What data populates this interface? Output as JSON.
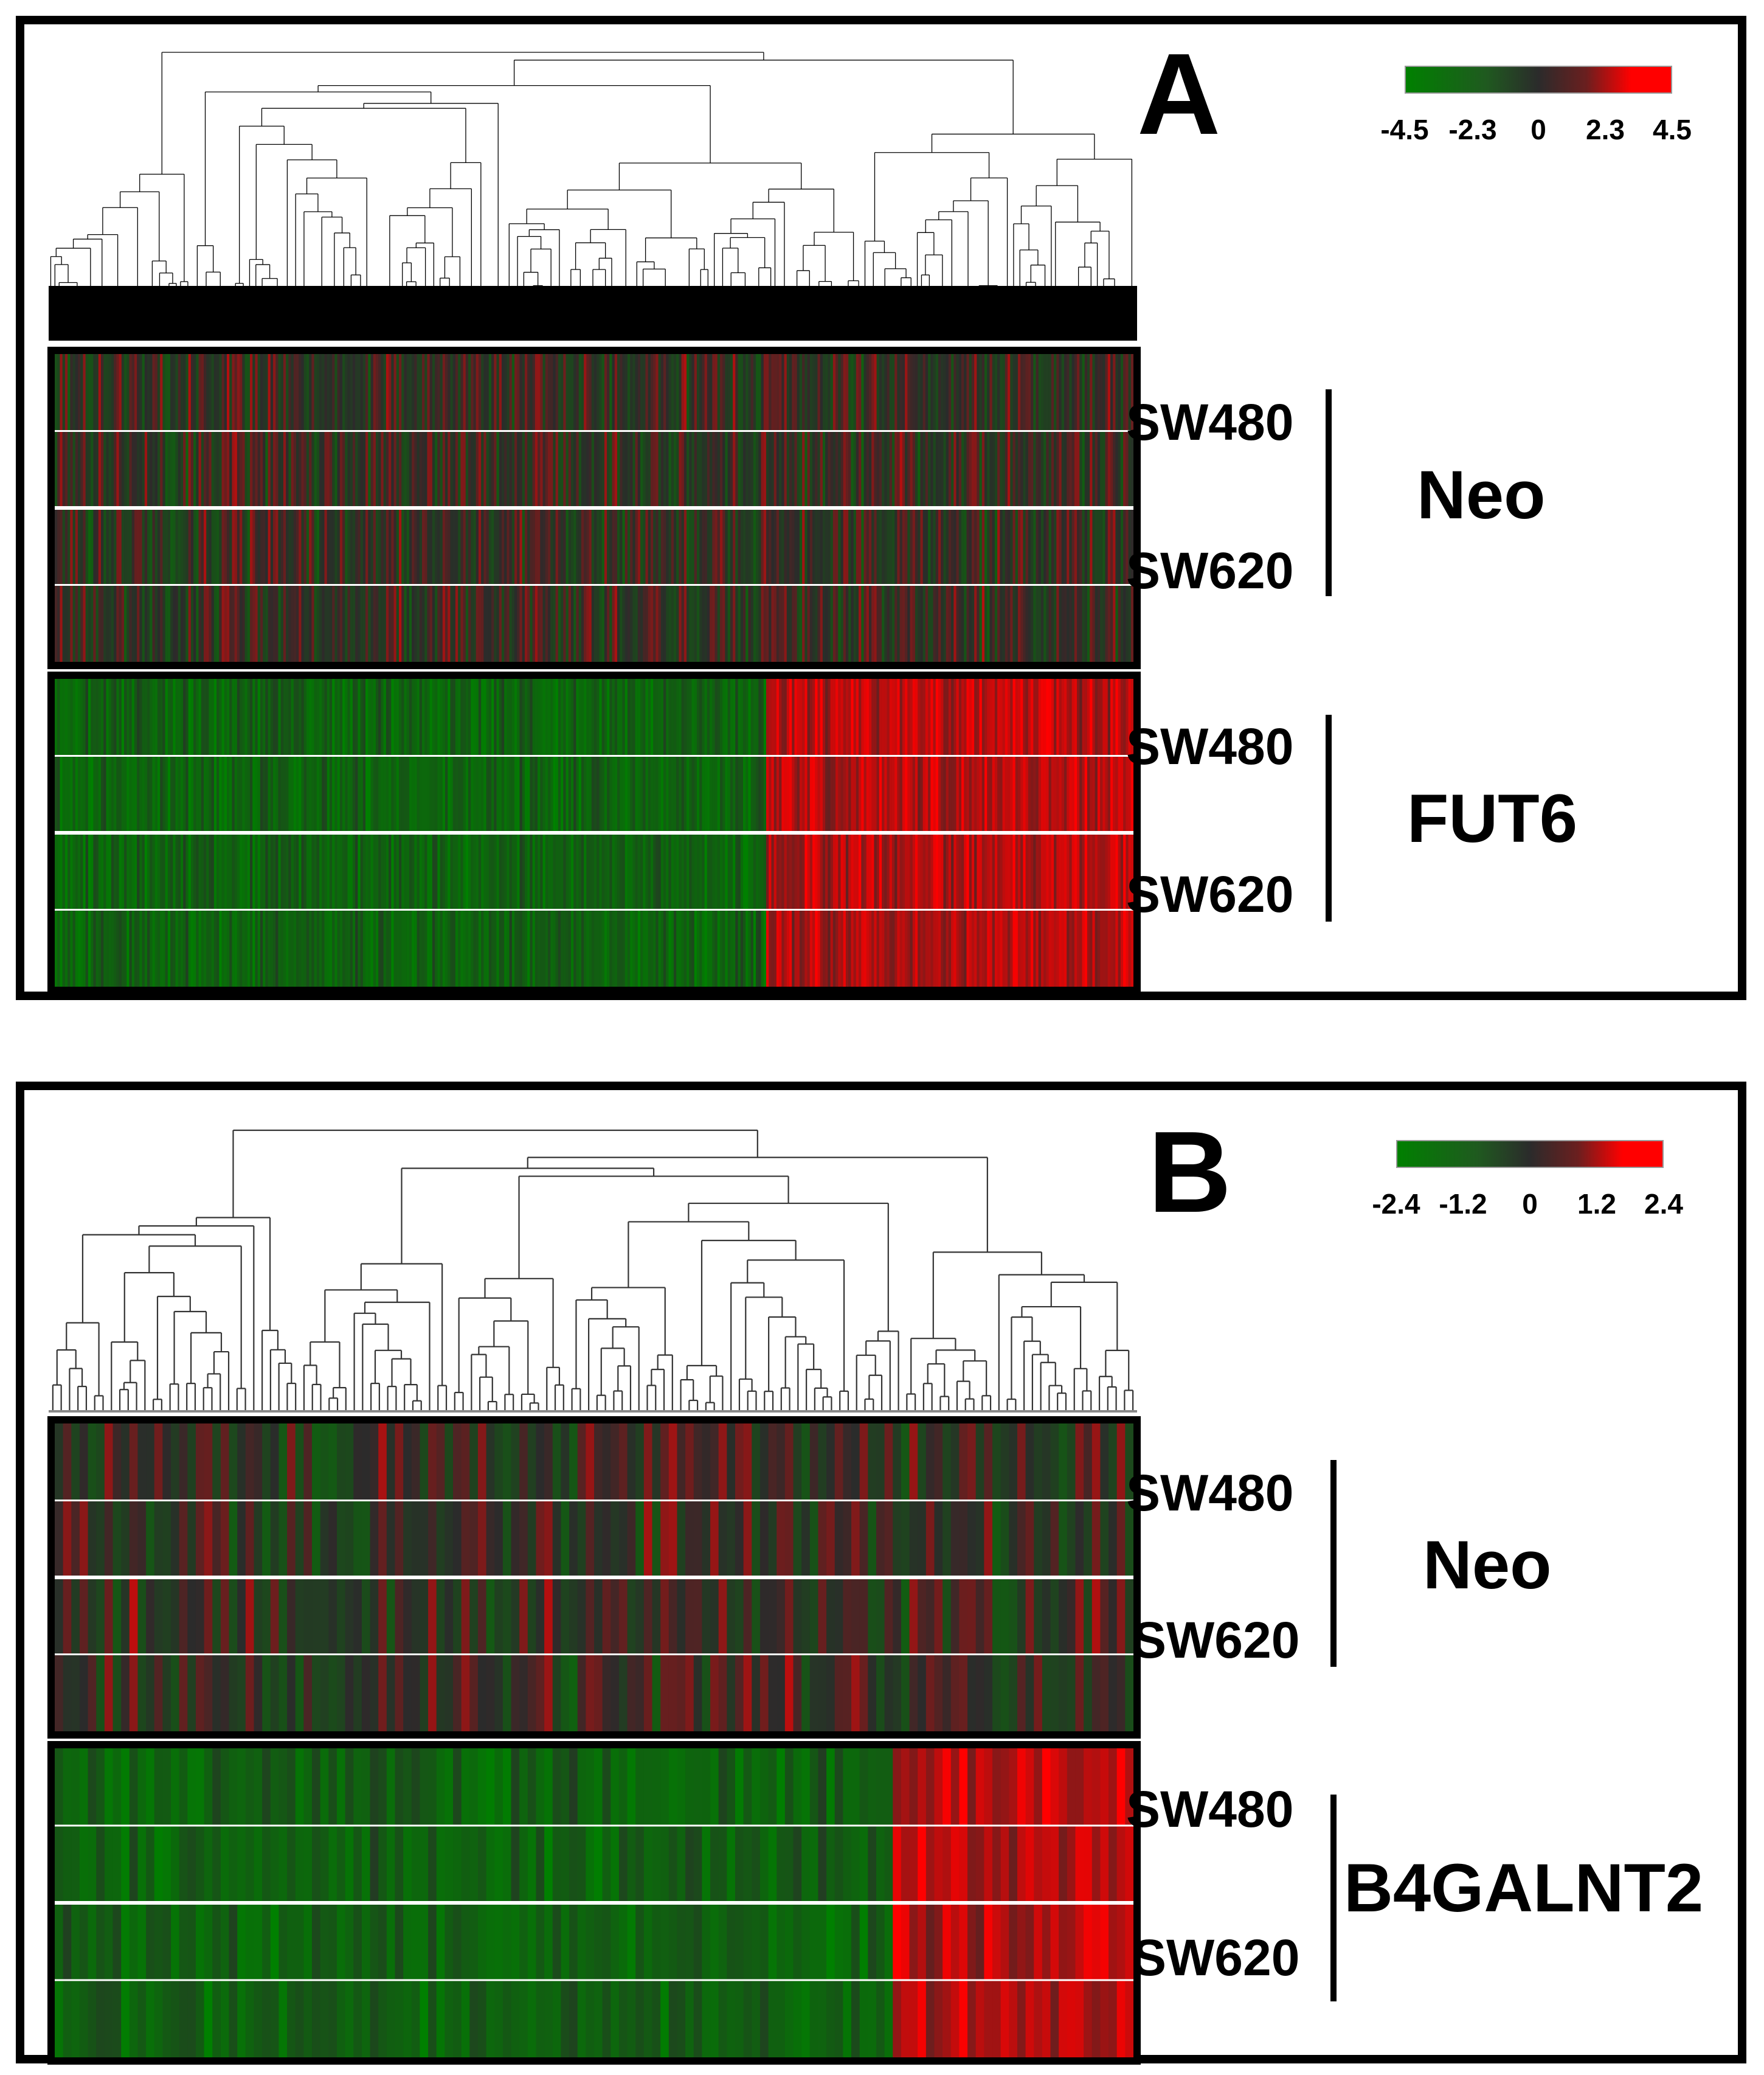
{
  "chart_data": [
    {
      "type": "heatmap",
      "panel_label": "A",
      "colorbar": {
        "ticks": [
          "-4.5",
          "-2.3",
          "0",
          "2.3",
          "4.5"
        ],
        "min": -4.5,
        "max": 4.5,
        "colors": [
          "#008000",
          "#2b2b2b",
          "#ff0000"
        ]
      },
      "dendrogram": true,
      "n_columns": 420,
      "split_fraction": 0.66,
      "groups": [
        {
          "name": "Neo",
          "rows": [
            "SW480",
            "SW620"
          ],
          "row_count": 4,
          "low_side": "mixed",
          "high_side": "mixed"
        },
        {
          "name": "FUT6",
          "rows": [
            "SW480",
            "SW620"
          ],
          "row_count": 4,
          "low_side": "down (green)",
          "high_side": "up (red)"
        }
      ]
    },
    {
      "type": "heatmap",
      "panel_label": "B",
      "colorbar": {
        "ticks": [
          "-2.4",
          "-1.2",
          "0",
          "1.2",
          "2.4"
        ],
        "min": -2.4,
        "max": 2.4,
        "colors": [
          "#008000",
          "#2b2b2b",
          "#ff0000"
        ]
      },
      "dendrogram": true,
      "n_columns": 130,
      "split_fraction": 0.78,
      "groups": [
        {
          "name": "Neo",
          "rows": [
            "SW480",
            "SW620"
          ],
          "row_count": 4,
          "low_side": "mixed",
          "high_side": "mixed"
        },
        {
          "name": "B4GALNT2",
          "rows": [
            "SW480",
            "SW620"
          ],
          "row_count": 4,
          "low_side": "down (green)",
          "high_side": "up (red)"
        }
      ]
    }
  ]
}
